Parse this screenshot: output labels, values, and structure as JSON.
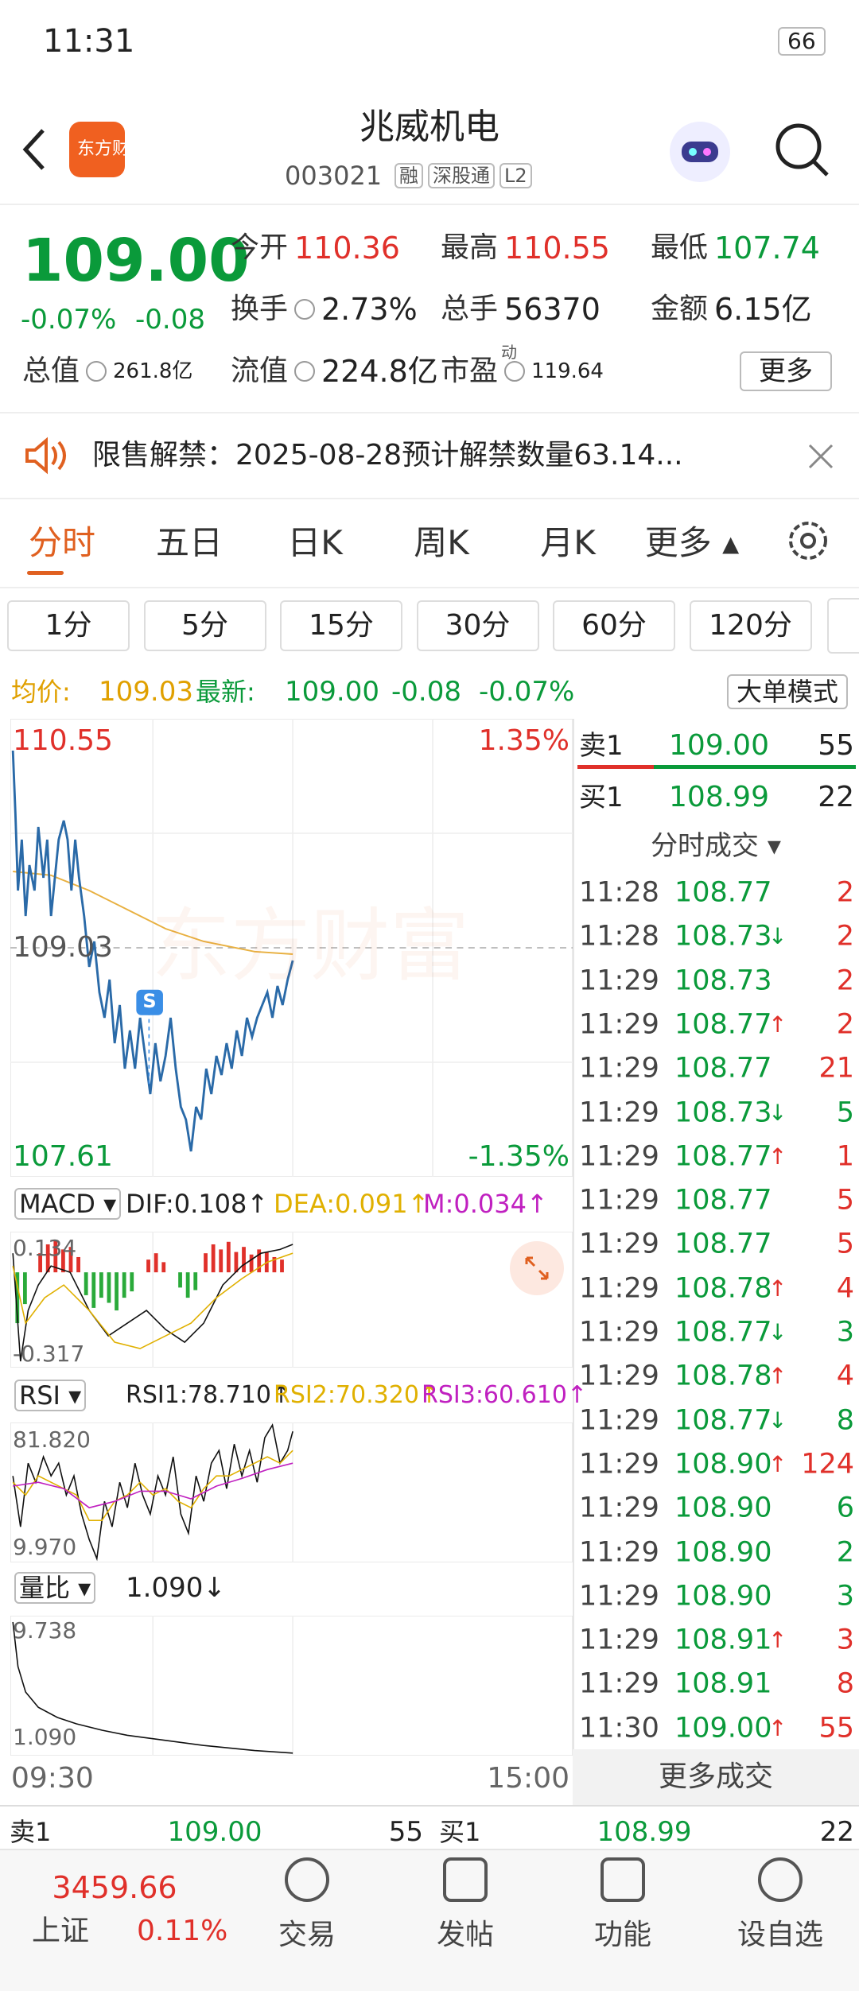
{
  "status": {
    "time": "11:31",
    "battery": "66"
  },
  "header": {
    "title": "兆威机电",
    "code": "003021",
    "tags": [
      "融",
      "深股通",
      "L2"
    ],
    "logo": "东方财富"
  },
  "quote": {
    "price": "109.00",
    "change_pct": "-0.07%",
    "change": "-0.08",
    "stats": [
      {
        "label": "今开",
        "value": "110.36"
      },
      {
        "label": "最高",
        "value": "110.55"
      },
      {
        "label": "最低",
        "value": "107.74"
      },
      {
        "label": "换手",
        "value": "2.73%"
      },
      {
        "label": "总手",
        "value": "56370"
      },
      {
        "label": "金额",
        "value": "6.15亿"
      },
      {
        "label": "总值",
        "value": "261.8亿"
      },
      {
        "label": "流值",
        "value": "224.8亿"
      },
      {
        "label": "市盈",
        "value": "119.64",
        "sup": "动"
      }
    ],
    "more": "更多"
  },
  "notice": "限售解禁：2025-08-28预计解禁数量63.14...",
  "tabs": [
    "分时",
    "五日",
    "日K",
    "周K",
    "月K",
    "更多"
  ],
  "intervals": [
    "1分",
    "5分",
    "15分",
    "30分",
    "60分",
    "120分"
  ],
  "summary": {
    "avg_label": "均价:",
    "avg": "109.03",
    "last_label": "最新:",
    "last": "109.00",
    "change": "-0.08",
    "change_pct": "-0.07%",
    "mode": "大单模式"
  },
  "price_chart": {
    "high": "110.55",
    "high_pct": "1.35%",
    "avg": "109.03",
    "low": "107.61",
    "low_pct": "-1.35%",
    "start": "09:30",
    "end": "15:00",
    "marker": "S",
    "watermark": "东方财富"
  },
  "macd": {
    "name": "MACD",
    "dif": "DIF:0.108↑",
    "dea": "DEA:0.091↑",
    "m": "M:0.034↑",
    "max": "0.134",
    "min": "-0.317"
  },
  "rsi": {
    "name": "RSI",
    "rsi1": "RSI1:78.710↑",
    "rsi2": "RSI2:70.320↑",
    "rsi3": "RSI3:60.610↑",
    "max": "81.820",
    "min": "9.970"
  },
  "volume_ratio": {
    "name": "量比",
    "value": "1.090↓",
    "max": "9.738",
    "min": "1.090"
  },
  "order_book": [
    {
      "side": "卖1",
      "price": "109.00",
      "volume": "55"
    },
    {
      "side": "买1",
      "price": "108.99",
      "volume": "22"
    }
  ],
  "trades": {
    "title": "分时成交",
    "more": "更多成交",
    "rows": [
      {
        "time": "11:28",
        "price": "108.77",
        "volume": "2",
        "color": "#e0302a"
      },
      {
        "time": "11:28",
        "price": "108.73",
        "arrow": "↓",
        "volume": "2",
        "color": "#e0302a"
      },
      {
        "time": "11:29",
        "price": "108.73",
        "volume": "2",
        "color": "#e0302a"
      },
      {
        "time": "11:29",
        "price": "108.77",
        "arrow": "↑",
        "volume": "2",
        "color": "#e0302a"
      },
      {
        "time": "11:29",
        "price": "108.77",
        "volume": "21",
        "color": "#e0302a"
      },
      {
        "time": "11:29",
        "price": "108.73",
        "arrow": "↓",
        "volume": "5",
        "color": "#0a9a3a"
      },
      {
        "time": "11:29",
        "price": "108.77",
        "arrow": "↑",
        "volume": "1",
        "color": "#e0302a"
      },
      {
        "time": "11:29",
        "price": "108.77",
        "volume": "5",
        "color": "#e0302a"
      },
      {
        "time": "11:29",
        "price": "108.77",
        "volume": "5",
        "color": "#e0302a"
      },
      {
        "time": "11:29",
        "price": "108.78",
        "arrow": "↑",
        "volume": "4",
        "color": "#e0302a"
      },
      {
        "time": "11:29",
        "price": "108.77",
        "arrow": "↓",
        "volume": "3",
        "color": "#0a9a3a"
      },
      {
        "time": "11:29",
        "price": "108.78",
        "arrow": "↑",
        "volume": "4",
        "color": "#e0302a"
      },
      {
        "time": "11:29",
        "price": "108.77",
        "arrow": "↓",
        "volume": "8",
        "color": "#0a9a3a"
      },
      {
        "time": "11:29",
        "price": "108.90",
        "arrow": "↑",
        "volume": "124",
        "color": "#e0302a"
      },
      {
        "time": "11:29",
        "price": "108.90",
        "volume": "6",
        "color": "#0a9a3a"
      },
      {
        "time": "11:29",
        "price": "108.90",
        "volume": "2",
        "color": "#0a9a3a"
      },
      {
        "time": "11:29",
        "price": "108.90",
        "volume": "3",
        "color": "#0a9a3a"
      },
      {
        "time": "11:29",
        "price": "108.91",
        "arrow": "↑",
        "volume": "3",
        "color": "#e0302a"
      },
      {
        "time": "11:29",
        "price": "108.91",
        "volume": "8",
        "color": "#e0302a"
      },
      {
        "time": "11:30",
        "price": "109.00",
        "arrow": "↑",
        "volume": "55",
        "color": "#e0302a"
      }
    ]
  },
  "bottom_book": [
    {
      "side": "卖1",
      "price": "109.00",
      "volume": "55"
    },
    {
      "side": "买1",
      "price": "108.99",
      "volume": "22"
    }
  ],
  "nav": {
    "index_value": "3459.66",
    "index_name": "上证",
    "index_change": "0.11%",
    "items": [
      "交易",
      "发帖",
      "功能",
      "设自选"
    ]
  }
}
